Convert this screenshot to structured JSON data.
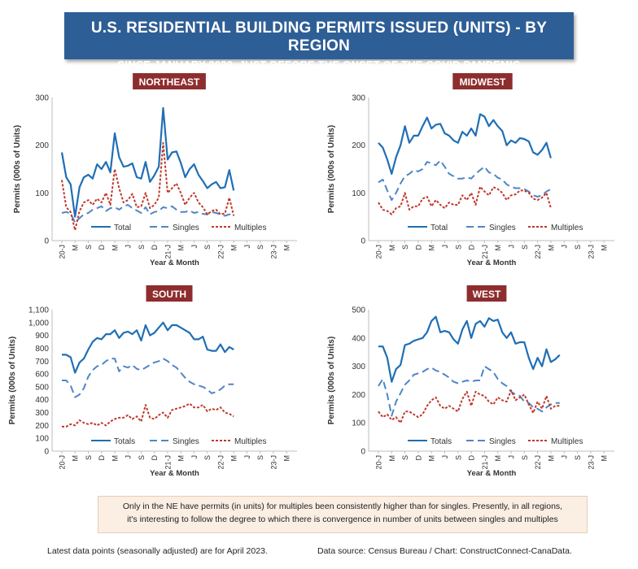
{
  "header": {
    "title": "U.S. RESIDENTIAL BUILDING PERMITS ISSUED (UNITS) - BY REGION",
    "subtitle": "SINCE JANUARY 2020, JUST BEFORE THE ONSET OF THE COVID PANDEMIC"
  },
  "note": {
    "line1": "Only in the NE have permits (in units) for multiples been consistently higher than for singles. Presently, in all regions,",
    "line2": "it's interesting to follow the degree to which there is convergence in number of units between singles and multiples"
  },
  "footer": {
    "left": "Latest data points (seasonally adjusted) are for April 2023.",
    "right": "Data source: Census Bureau / Chart: ConstructConnect-CanaData."
  },
  "colors": {
    "banner": "#2e5e96",
    "total": "#1f6fb5",
    "singles": "#4f86c6",
    "multiples": "#c0392b",
    "panel_title": "#8e2d2d"
  },
  "chart_data": [
    {
      "type": "line",
      "title": "NORTHEAST",
      "ylabel": "Permits (000s of Units)",
      "xlabel": "Year & Month",
      "ylim": [
        0,
        300
      ],
      "yticks": [
        "0",
        "100",
        "200",
        "300"
      ],
      "xticks": [
        {
          "i": 0,
          "label": "20-J"
        },
        {
          "i": 3,
          "label": "M"
        },
        {
          "i": 6,
          "label": "S"
        },
        {
          "i": 9,
          "label": "D"
        },
        {
          "i": 12,
          "label": "M"
        },
        {
          "i": 15,
          "label": "J"
        },
        {
          "i": 18,
          "label": "S"
        },
        {
          "i": 21,
          "label": "D"
        },
        {
          "i": 24,
          "label": "21-J"
        },
        {
          "i": 27,
          "label": "M"
        },
        {
          "i": 30,
          "label": "J"
        },
        {
          "i": 33,
          "label": "S"
        },
        {
          "i": 36,
          "label": "22-J"
        },
        {
          "i": 39,
          "label": "M"
        },
        {
          "i": 42,
          "label": "J"
        },
        {
          "i": 45,
          "label": "S"
        },
        {
          "i": 48,
          "label": "23-J"
        },
        {
          "i": 51,
          "label": "M"
        }
      ],
      "series": [
        {
          "name": "Total",
          "style": "solid",
          "values": [
            185,
            133,
            118,
            50,
            112,
            133,
            138,
            130,
            160,
            150,
            165,
            143,
            225,
            175,
            155,
            157,
            162,
            133,
            130,
            165,
            123,
            137,
            155,
            278,
            170,
            185,
            187,
            163,
            133,
            150,
            160,
            138,
            125,
            110,
            118,
            123,
            110,
            112,
            148,
            105
          ]
        },
        {
          "name": "Singles",
          "style": "dash",
          "values": [
            58,
            60,
            57,
            38,
            47,
            55,
            58,
            65,
            68,
            72,
            62,
            68,
            70,
            65,
            72,
            75,
            68,
            63,
            58,
            70,
            55,
            60,
            62,
            70,
            68,
            72,
            65,
            60,
            60,
            63,
            58,
            60,
            56,
            55,
            60,
            58,
            55,
            52,
            55,
            53
          ]
        },
        {
          "name": "Multiples",
          "style": "dot",
          "values": [
            127,
            70,
            60,
            22,
            62,
            80,
            85,
            75,
            88,
            80,
            100,
            75,
            150,
            110,
            80,
            85,
            98,
            70,
            72,
            100,
            68,
            75,
            90,
            205,
            100,
            110,
            120,
            100,
            75,
            90,
            100,
            80,
            70,
            55,
            62,
            65,
            55,
            57,
            90,
            52
          ]
        }
      ],
      "legend": [
        "Total",
        "Singles",
        "Multiples"
      ]
    },
    {
      "type": "line",
      "title": "MIDWEST",
      "ylabel": "Permits (000s of Units)",
      "xlabel": "Year & Month",
      "ylim": [
        0,
        300
      ],
      "yticks": [
        "0",
        "100",
        "200",
        "300"
      ],
      "xticks": [
        {
          "i": 0,
          "label": "20-J"
        },
        {
          "i": 3,
          "label": "M"
        },
        {
          "i": 6,
          "label": "S"
        },
        {
          "i": 9,
          "label": "D"
        },
        {
          "i": 12,
          "label": "M"
        },
        {
          "i": 15,
          "label": "J"
        },
        {
          "i": 18,
          "label": "S"
        },
        {
          "i": 21,
          "label": "D"
        },
        {
          "i": 24,
          "label": "21-J"
        },
        {
          "i": 27,
          "label": "M"
        },
        {
          "i": 30,
          "label": "J"
        },
        {
          "i": 33,
          "label": "S"
        },
        {
          "i": 36,
          "label": "22-J"
        },
        {
          "i": 39,
          "label": "M"
        },
        {
          "i": 42,
          "label": "J"
        },
        {
          "i": 45,
          "label": "S"
        },
        {
          "i": 48,
          "label": "23-J"
        },
        {
          "i": 51,
          "label": "M"
        }
      ],
      "series": [
        {
          "name": "Total",
          "style": "solid",
          "values": [
            205,
            195,
            170,
            140,
            175,
            200,
            240,
            205,
            220,
            220,
            240,
            258,
            235,
            243,
            245,
            225,
            220,
            210,
            205,
            228,
            220,
            235,
            220,
            265,
            260,
            240,
            253,
            240,
            230,
            200,
            210,
            205,
            215,
            213,
            208,
            185,
            180,
            190,
            205,
            173
          ]
        },
        {
          "name": "Singles",
          "style": "dash",
          "values": [
            122,
            128,
            105,
            85,
            100,
            120,
            135,
            140,
            148,
            145,
            150,
            165,
            162,
            158,
            168,
            155,
            140,
            135,
            130,
            130,
            133,
            130,
            140,
            148,
            155,
            143,
            140,
            132,
            128,
            118,
            113,
            110,
            110,
            108,
            103,
            95,
            92,
            95,
            103,
            108
          ]
        },
        {
          "name": "Multiples",
          "style": "dot",
          "values": [
            80,
            65,
            62,
            55,
            68,
            72,
            100,
            65,
            72,
            72,
            88,
            92,
            72,
            85,
            75,
            68,
            80,
            75,
            75,
            95,
            85,
            100,
            75,
            113,
            103,
            95,
            112,
            108,
            100,
            85,
            95,
            97,
            105,
            105,
            100,
            88,
            85,
            90,
            100,
            68
          ]
        }
      ],
      "legend": [
        "Total",
        "Singles",
        "Multiples"
      ]
    },
    {
      "type": "line",
      "title": "SOUTH",
      "ylabel": "Permits (000s of Units)",
      "xlabel": "Year & Month",
      "ylim": [
        0,
        1100
      ],
      "yticks": [
        "0",
        "100",
        "200",
        "300",
        "400",
        "500",
        "600",
        "700",
        "800",
        "900",
        "1,000",
        "1,100"
      ],
      "xticks": [
        {
          "i": 0,
          "label": "20-J"
        },
        {
          "i": 3,
          "label": "M"
        },
        {
          "i": 6,
          "label": "S"
        },
        {
          "i": 9,
          "label": "D"
        },
        {
          "i": 12,
          "label": "M"
        },
        {
          "i": 15,
          "label": "J"
        },
        {
          "i": 18,
          "label": "S"
        },
        {
          "i": 21,
          "label": "D"
        },
        {
          "i": 24,
          "label": "21-J"
        },
        {
          "i": 27,
          "label": "M"
        },
        {
          "i": 30,
          "label": "J"
        },
        {
          "i": 33,
          "label": "S"
        },
        {
          "i": 36,
          "label": "22-J"
        },
        {
          "i": 39,
          "label": "M"
        },
        {
          "i": 42,
          "label": "J"
        },
        {
          "i": 45,
          "label": "S"
        },
        {
          "i": 48,
          "label": "23-J"
        },
        {
          "i": 51,
          "label": "M"
        }
      ],
      "series": [
        {
          "name": "Totals",
          "style": "solid",
          "values": [
            750,
            750,
            730,
            610,
            690,
            720,
            790,
            850,
            880,
            870,
            910,
            910,
            940,
            880,
            920,
            930,
            910,
            940,
            860,
            980,
            900,
            920,
            960,
            1000,
            940,
            980,
            980,
            960,
            940,
            920,
            870,
            870,
            890,
            790,
            780,
            780,
            830,
            770,
            810,
            790
          ]
        },
        {
          "name": "Singles",
          "style": "dash",
          "values": [
            550,
            550,
            510,
            420,
            440,
            490,
            580,
            630,
            660,
            670,
            700,
            720,
            720,
            620,
            660,
            650,
            670,
            640,
            630,
            650,
            670,
            690,
            700,
            720,
            700,
            670,
            650,
            610,
            570,
            540,
            520,
            510,
            500,
            480,
            450,
            460,
            480,
            510,
            520,
            520
          ]
        },
        {
          "name": "Multiples",
          "style": "dot",
          "values": [
            190,
            190,
            210,
            200,
            240,
            220,
            210,
            220,
            200,
            220,
            200,
            230,
            250,
            260,
            260,
            280,
            250,
            270,
            230,
            360,
            260,
            250,
            280,
            300,
            260,
            320,
            330,
            340,
            350,
            370,
            340,
            340,
            360,
            310,
            330,
            320,
            340,
            300,
            290,
            270
          ]
        }
      ],
      "legend": [
        "Totals",
        "Singles",
        "Multiples"
      ]
    },
    {
      "type": "line",
      "title": "WEST",
      "ylabel": "Permits (000s of Units)",
      "xlabel": "Year & Month",
      "ylim": [
        0,
        500
      ],
      "yticks": [
        "0",
        "100",
        "200",
        "300",
        "400",
        "500"
      ],
      "xticks": [
        {
          "i": 0,
          "label": "20-J"
        },
        {
          "i": 3,
          "label": "M"
        },
        {
          "i": 6,
          "label": "S"
        },
        {
          "i": 9,
          "label": "D"
        },
        {
          "i": 12,
          "label": "M"
        },
        {
          "i": 15,
          "label": "J"
        },
        {
          "i": 18,
          "label": "S"
        },
        {
          "i": 21,
          "label": "D"
        },
        {
          "i": 24,
          "label": "21-J"
        },
        {
          "i": 27,
          "label": "M"
        },
        {
          "i": 30,
          "label": "J"
        },
        {
          "i": 33,
          "label": "S"
        },
        {
          "i": 36,
          "label": "22-J"
        },
        {
          "i": 39,
          "label": "M"
        },
        {
          "i": 42,
          "label": "J"
        },
        {
          "i": 45,
          "label": "S"
        },
        {
          "i": 48,
          "label": "23-J"
        },
        {
          "i": 51,
          "label": "M"
        }
      ],
      "series": [
        {
          "name": "Totals",
          "style": "solid",
          "values": [
            370,
            370,
            330,
            245,
            290,
            305,
            375,
            380,
            390,
            395,
            400,
            420,
            460,
            475,
            420,
            425,
            420,
            395,
            380,
            430,
            460,
            400,
            450,
            460,
            440,
            470,
            460,
            465,
            420,
            400,
            420,
            380,
            385,
            385,
            330,
            290,
            330,
            300,
            360,
            315,
            325,
            340
          ]
        },
        {
          "name": "Singles",
          "style": "dash",
          "values": [
            230,
            255,
            200,
            125,
            175,
            205,
            235,
            250,
            270,
            275,
            280,
            290,
            295,
            285,
            280,
            270,
            260,
            245,
            240,
            245,
            250,
            245,
            250,
            250,
            300,
            290,
            280,
            255,
            240,
            230,
            210,
            200,
            195,
            175,
            170,
            155,
            150,
            140,
            155,
            165,
            170,
            170
          ]
        },
        {
          "name": "Multiples",
          "style": "dot",
          "values": [
            140,
            120,
            130,
            110,
            120,
            100,
            140,
            140,
            130,
            120,
            130,
            160,
            180,
            190,
            160,
            150,
            160,
            150,
            140,
            185,
            210,
            160,
            210,
            200,
            195,
            175,
            165,
            190,
            180,
            175,
            215,
            180,
            190,
            200,
            165,
            135,
            175,
            150,
            195,
            150,
            160,
            160
          ]
        }
      ],
      "legend": [
        "Totals",
        "Singles",
        "Multiples"
      ]
    }
  ]
}
